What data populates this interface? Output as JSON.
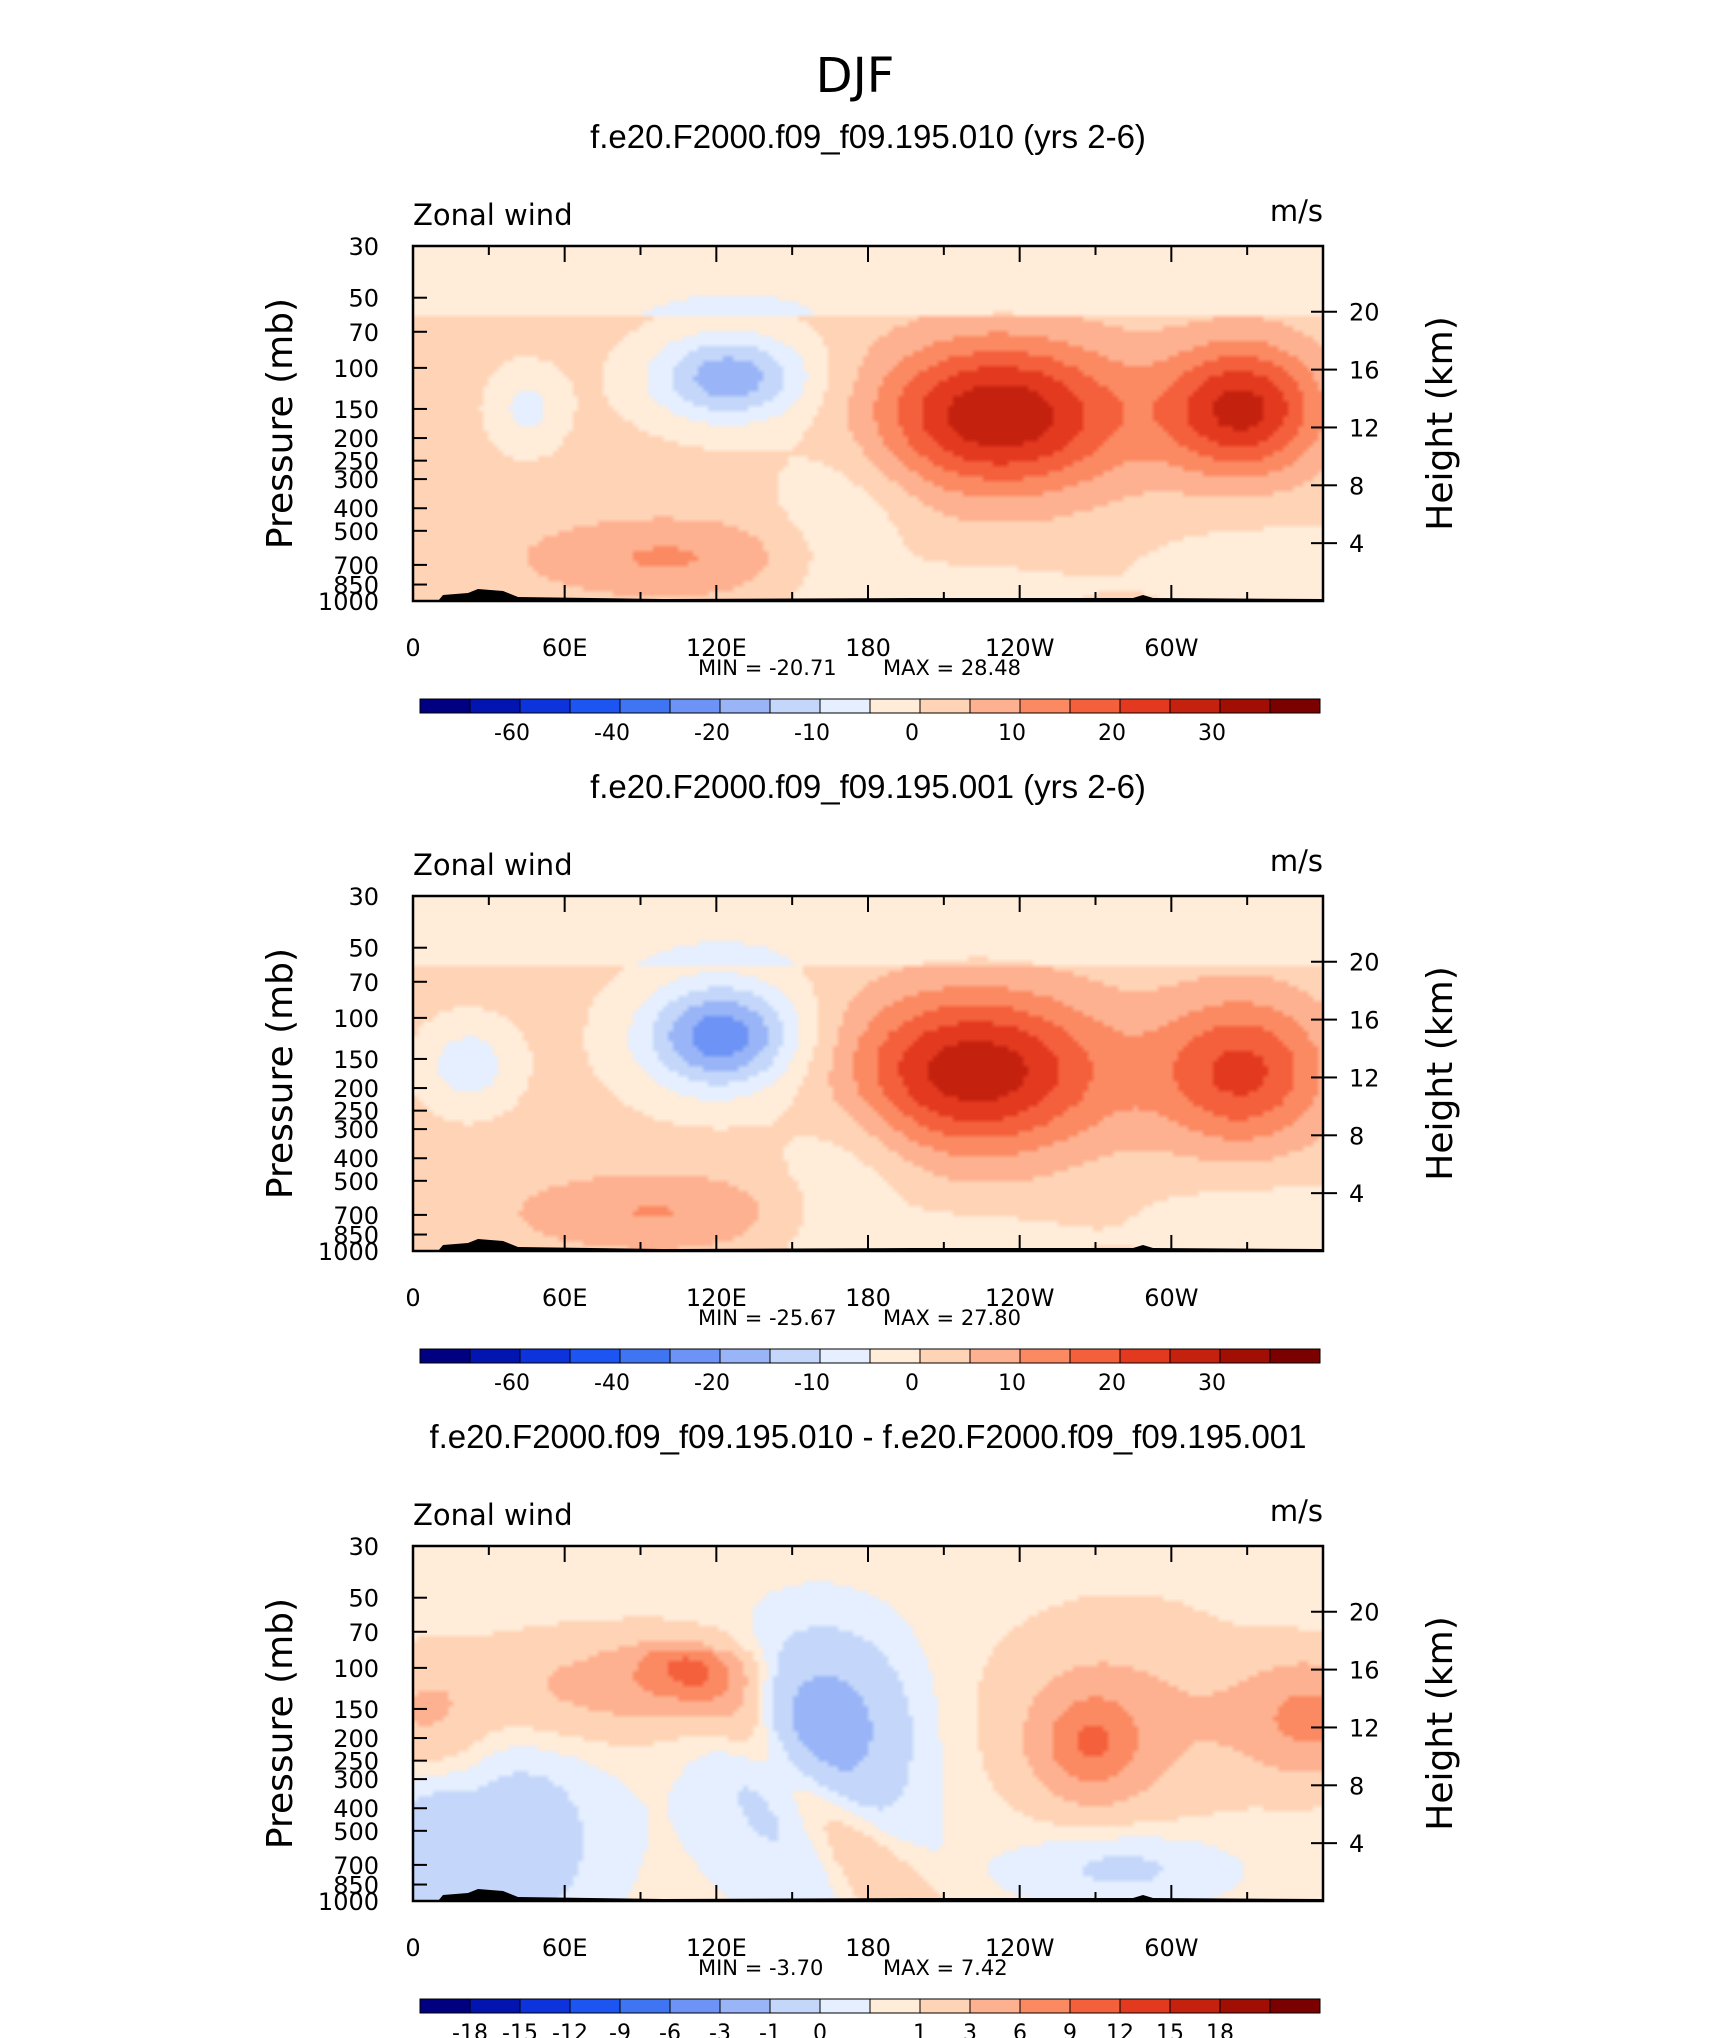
{
  "title": "DJF",
  "colors": {
    "abs": [
      "#000080",
      "#0315b0",
      "#0d33dd",
      "#1d55f2",
      "#3f74f3",
      "#6c93f5",
      "#99b5f7",
      "#c4d7fa",
      "#e5efff",
      "#ffecd9",
      "#ffd3b5",
      "#feb190",
      "#fb8a63",
      "#f5603c",
      "#e33a1f",
      "#c5210f",
      "#a10e04",
      "#7b0000"
    ],
    "diff": [
      "#000080",
      "#0315b0",
      "#0d33dd",
      "#1d55f2",
      "#3f74f3",
      "#6c93f5",
      "#99b5f7",
      "#c4d7fa",
      "#e5efff",
      "#ffecd9",
      "#ffd3b5",
      "#feb190",
      "#fb8a63",
      "#f5603c",
      "#e33a1f",
      "#c5210f",
      "#a10e04",
      "#7b0000"
    ],
    "topography": "#000000"
  },
  "chart_data": [
    {
      "type": "heatmap",
      "title": "f.e20.F2000.f09_f09.195.010 (yrs 2-6)",
      "variable": "Zonal wind",
      "units": "m/s",
      "ylabel": "Pressure (mb)",
      "ylabel_right": "Height (km)",
      "x_tick_labels": [
        "0",
        "60E",
        "120E",
        "180",
        "120W",
        "60W"
      ],
      "x_range": [
        0,
        360
      ],
      "y_tick_labels": [
        "30",
        "50",
        "70",
        "100",
        "150",
        "200",
        "250",
        "300",
        "400",
        "500",
        "700",
        "850",
        "1000"
      ],
      "y_range_mb": [
        1000,
        30
      ],
      "height_tick_labels": [
        "4",
        "8",
        "12",
        "16",
        "20"
      ],
      "min": "MIN = -20.71",
      "max": "MAX = 28.48",
      "colorbar_labels": [
        "-60",
        "-40",
        "-20",
        "-10",
        "0",
        "10",
        "20",
        "30"
      ],
      "features": [
        {
          "lon": 125,
          "p": 110,
          "value": -20.7
        },
        {
          "lon": 232,
          "p": 160,
          "value": 28.5
        },
        {
          "lon": 328,
          "p": 150,
          "value": 25
        },
        {
          "lon": 45,
          "p": 150,
          "value": -10
        }
      ]
    },
    {
      "type": "heatmap",
      "title": "f.e20.F2000.f09_f09.195.001 (yrs 2-6)",
      "variable": "Zonal wind",
      "units": "m/s",
      "ylabel": "Pressure (mb)",
      "ylabel_right": "Height (km)",
      "x_tick_labels": [
        "0",
        "60E",
        "120E",
        "180",
        "120W",
        "60W"
      ],
      "x_range": [
        0,
        360
      ],
      "y_tick_labels": [
        "30",
        "50",
        "70",
        "100",
        "150",
        "200",
        "250",
        "300",
        "400",
        "500",
        "700",
        "850",
        "1000"
      ],
      "y_range_mb": [
        1000,
        30
      ],
      "height_tick_labels": [
        "4",
        "8",
        "12",
        "16",
        "20"
      ],
      "min": "MIN = -25.67",
      "max": "MAX = 27.80",
      "colorbar_labels": [
        "-60",
        "-40",
        "-20",
        "-10",
        "0",
        "10",
        "20",
        "30"
      ],
      "features": [
        {
          "lon": 120,
          "p": 125,
          "value": -25.7
        },
        {
          "lon": 222,
          "p": 160,
          "value": 27.8
        },
        {
          "lon": 330,
          "p": 160,
          "value": 20
        },
        {
          "lon": 25,
          "p": 160,
          "value": -10
        }
      ]
    },
    {
      "type": "heatmap",
      "title": "f.e20.F2000.f09_f09.195.010 - f.e20.F2000.f09_f09.195.001",
      "variable": "Zonal wind",
      "units": "m/s",
      "ylabel": "Pressure (mb)",
      "ylabel_right": "Height (km)",
      "x_tick_labels": [
        "0",
        "60E",
        "120E",
        "180",
        "120W",
        "60W"
      ],
      "x_range": [
        0,
        360
      ],
      "y_tick_labels": [
        "30",
        "50",
        "70",
        "100",
        "150",
        "200",
        "250",
        "300",
        "400",
        "500",
        "700",
        "850",
        "1000"
      ],
      "y_range_mb": [
        1000,
        30
      ],
      "height_tick_labels": [
        "4",
        "8",
        "12",
        "16",
        "20"
      ],
      "min": "MIN = -3.70",
      "max": "MAX = 7.42",
      "colorbar_labels": [
        "-18",
        "-15",
        "-12",
        "-9",
        "-6",
        "-3",
        "-1",
        "0",
        "1",
        "3",
        "6",
        "9",
        "12",
        "15",
        "18"
      ],
      "features": [
        {
          "lon": 160,
          "p": 150,
          "value": -3.7
        },
        {
          "lon": 270,
          "p": 200,
          "value": 7.4
        },
        {
          "lon": 110,
          "p": 105,
          "value": 6
        },
        {
          "lon": 10,
          "p": 170,
          "value": 3
        }
      ]
    }
  ]
}
